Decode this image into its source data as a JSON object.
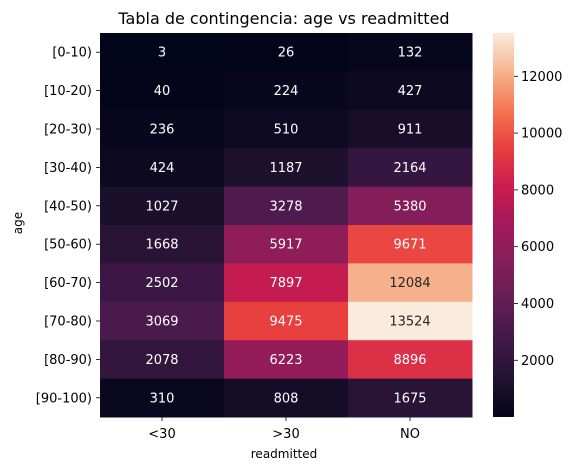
{
  "chart_data": {
    "type": "heatmap",
    "title": "Tabla de contingencia: age vs readmitted",
    "xlabel": "readmitted",
    "ylabel": "age",
    "x_categories": [
      "<30",
      ">30",
      "NO"
    ],
    "y_categories": [
      "[0-10)",
      "[10-20)",
      "[20-30)",
      "[30-40)",
      "[40-50)",
      "[50-60)",
      "[60-70)",
      "[70-80)",
      "[80-90)",
      "[90-100)"
    ],
    "values": [
      [
        3,
        26,
        132
      ],
      [
        40,
        224,
        427
      ],
      [
        236,
        510,
        911
      ],
      [
        424,
        1187,
        2164
      ],
      [
        1027,
        3278,
        5380
      ],
      [
        1668,
        5917,
        9671
      ],
      [
        2502,
        7897,
        12084
      ],
      [
        3069,
        9475,
        13524
      ],
      [
        2078,
        6223,
        8896
      ],
      [
        310,
        808,
        1675
      ]
    ],
    "colorbar": {
      "colormap": "rocket",
      "vmin": 3,
      "vmax": 13524,
      "ticks": [
        2000,
        4000,
        6000,
        8000,
        10000,
        12000
      ]
    }
  }
}
